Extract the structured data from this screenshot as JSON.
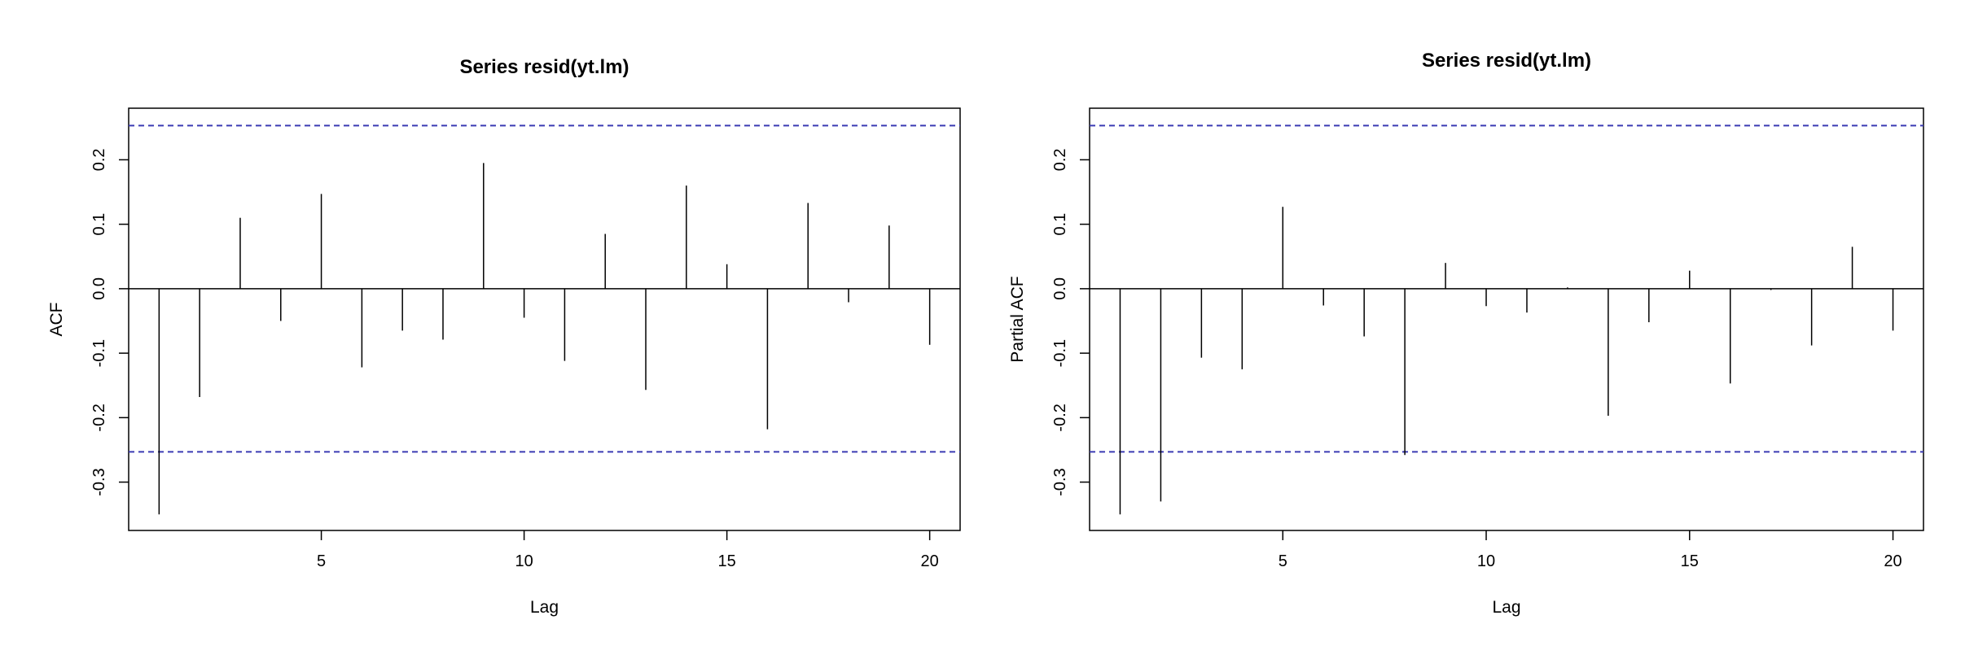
{
  "chart_data": [
    {
      "type": "bar",
      "subtype": "acf",
      "title": "Series resid(yt.lm)",
      "xlabel": "Lag",
      "ylabel": "ACF",
      "xlim": [
        0.25,
        20.75
      ],
      "ylim": [
        -0.375,
        0.28
      ],
      "xticks": [
        "5",
        "10",
        "15",
        "20"
      ],
      "yticks": [
        "-0.3",
        "-0.2",
        "-0.1",
        "0.0",
        "0.1",
        "0.2"
      ],
      "conf_limit": 0.253,
      "conf_color": "#3b3bb3",
      "lags": [
        1,
        2,
        3,
        4,
        5,
        6,
        7,
        8,
        9,
        10,
        11,
        12,
        13,
        14,
        15,
        16,
        17,
        18,
        19,
        20
      ],
      "values": [
        -0.35,
        -0.168,
        0.11,
        -0.05,
        0.147,
        -0.122,
        -0.065,
        -0.079,
        0.195,
        -0.045,
        -0.112,
        0.085,
        -0.157,
        0.16,
        0.038,
        -0.218,
        0.133,
        -0.021,
        0.098,
        -0.087
      ]
    },
    {
      "type": "bar",
      "subtype": "pacf",
      "title": "Series  resid(yt.lm)",
      "xlabel": "Lag",
      "ylabel": "Partial ACF",
      "xlim": [
        0.25,
        20.75
      ],
      "ylim": [
        -0.375,
        0.28
      ],
      "xticks": [
        "5",
        "10",
        "15",
        "20"
      ],
      "yticks": [
        "-0.3",
        "-0.2",
        "-0.1",
        "0.0",
        "0.1",
        "0.2"
      ],
      "conf_limit": 0.253,
      "conf_color": "#3b3bb3",
      "lags": [
        1,
        2,
        3,
        4,
        5,
        6,
        7,
        8,
        9,
        10,
        11,
        12,
        13,
        14,
        15,
        16,
        17,
        18,
        19,
        20
      ],
      "values": [
        -0.35,
        -0.33,
        -0.107,
        -0.125,
        0.127,
        -0.026,
        -0.074,
        -0.258,
        0.04,
        -0.027,
        -0.037,
        0.002,
        -0.197,
        -0.052,
        0.028,
        -0.147,
        -0.002,
        -0.088,
        0.065,
        -0.065
      ]
    }
  ]
}
